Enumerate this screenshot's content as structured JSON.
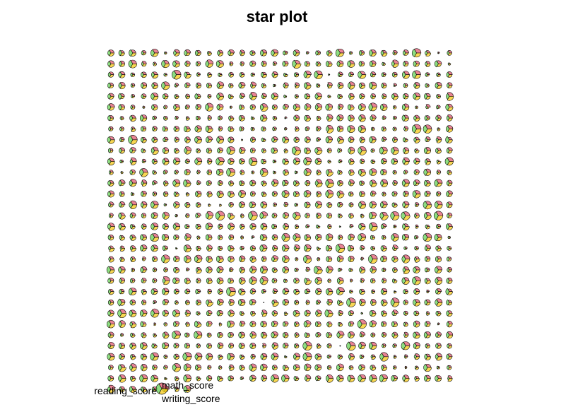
{
  "chart_data": {
    "type": "star",
    "title": "star plot",
    "variables": [
      "math_score",
      "reading_score",
      "writing_score"
    ],
    "key": {
      "labels": [
        "math_score",
        "reading_score",
        "writing_score"
      ],
      "placement": "bottom-left"
    },
    "layout": {
      "rows": 32,
      "columns": 32,
      "observations": 1000
    },
    "scale": "each variable scaled to [0, 1] by its observed range",
    "colors": {
      "math_score": "#df536b",
      "reading_score": "#61d04f",
      "writing_score": "#f5c710",
      "segment_fill_opacity": 0.72,
      "outline": "#000000"
    },
    "grid": false
  }
}
